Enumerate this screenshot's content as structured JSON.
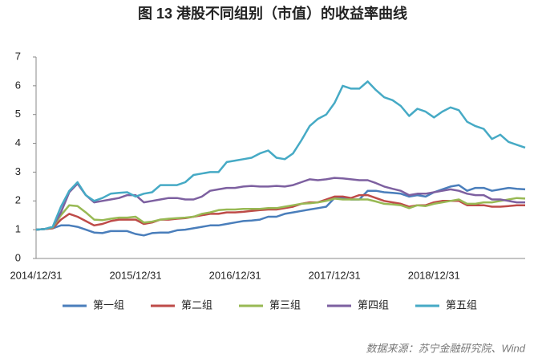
{
  "chart_data": {
    "type": "line",
    "title": "图 13  港股不同组别（市值）的收益率曲线",
    "source": "数据来源：苏宁金融研究院、Wind",
    "categories": [
      "2014/12/31",
      null,
      null,
      null,
      null,
      null,
      null,
      null,
      null,
      null,
      null,
      null,
      "2015/12/31",
      null,
      null,
      null,
      null,
      null,
      null,
      null,
      null,
      null,
      null,
      null,
      "2016/12/31",
      null,
      null,
      null,
      null,
      null,
      null,
      null,
      null,
      null,
      null,
      null,
      "2017/12/31",
      null,
      null,
      null,
      null,
      null,
      null,
      null,
      null,
      null,
      null,
      null,
      "2018/12/31",
      null,
      null,
      null,
      null,
      null,
      null,
      null,
      null,
      null,
      null,
      null
    ],
    "ylim": [
      0,
      7
    ],
    "yticks": [
      0,
      1,
      2,
      3,
      4,
      5,
      6,
      7
    ],
    "grid": false,
    "legend": "bottom",
    "series": [
      {
        "name": "第一组",
        "color": "#4a7ebb",
        "values": [
          1.0,
          1.02,
          1.05,
          1.15,
          1.15,
          1.1,
          1.0,
          0.9,
          0.88,
          0.95,
          0.95,
          0.95,
          0.85,
          0.8,
          0.88,
          0.9,
          0.9,
          0.98,
          1.0,
          1.05,
          1.1,
          1.15,
          1.15,
          1.2,
          1.25,
          1.3,
          1.32,
          1.35,
          1.45,
          1.45,
          1.55,
          1.6,
          1.65,
          1.7,
          1.75,
          1.8,
          2.1,
          2.1,
          2.05,
          2.05,
          2.35,
          2.35,
          2.3,
          2.28,
          2.25,
          2.15,
          2.2,
          2.15,
          2.3,
          2.4,
          2.5,
          2.55,
          2.35,
          2.45,
          2.45,
          2.35,
          2.4,
          2.45,
          2.42,
          2.4
        ]
      },
      {
        "name": "第二组",
        "color": "#be4b48",
        "values": [
          1.0,
          1.02,
          1.05,
          1.35,
          1.55,
          1.45,
          1.3,
          1.15,
          1.2,
          1.3,
          1.35,
          1.35,
          1.35,
          1.2,
          1.25,
          1.35,
          1.35,
          1.38,
          1.4,
          1.45,
          1.5,
          1.55,
          1.55,
          1.6,
          1.6,
          1.62,
          1.65,
          1.68,
          1.7,
          1.7,
          1.75,
          1.8,
          1.9,
          1.95,
          1.95,
          2.05,
          2.15,
          2.15,
          2.1,
          2.2,
          2.2,
          2.1,
          2.0,
          1.95,
          1.9,
          1.8,
          1.85,
          1.85,
          1.95,
          2.0,
          2.0,
          2.0,
          1.85,
          1.85,
          1.85,
          1.8,
          1.8,
          1.82,
          1.85,
          1.85
        ]
      },
      {
        "name": "第三组",
        "color": "#98b954",
        "values": [
          1.0,
          1.02,
          1.08,
          1.5,
          1.85,
          1.82,
          1.6,
          1.35,
          1.33,
          1.38,
          1.42,
          1.42,
          1.45,
          1.25,
          1.28,
          1.35,
          1.38,
          1.4,
          1.42,
          1.45,
          1.55,
          1.6,
          1.68,
          1.7,
          1.7,
          1.72,
          1.72,
          1.72,
          1.75,
          1.75,
          1.8,
          1.85,
          1.9,
          1.92,
          1.95,
          2.0,
          2.08,
          2.05,
          2.05,
          2.05,
          2.05,
          1.98,
          1.9,
          1.88,
          1.85,
          1.75,
          1.85,
          1.82,
          1.9,
          1.95,
          2.0,
          2.05,
          1.9,
          1.9,
          1.95,
          1.95,
          2.0,
          2.05,
          2.1,
          2.08
        ]
      },
      {
        "name": "第四组",
        "color": "#7d60a0",
        "values": [
          1.0,
          1.02,
          1.1,
          1.6,
          2.3,
          2.6,
          2.2,
          1.95,
          2.0,
          2.05,
          2.1,
          2.2,
          2.2,
          1.95,
          2.0,
          2.05,
          2.1,
          2.1,
          2.05,
          2.05,
          2.15,
          2.35,
          2.4,
          2.45,
          2.45,
          2.5,
          2.52,
          2.5,
          2.5,
          2.52,
          2.5,
          2.55,
          2.65,
          2.75,
          2.72,
          2.75,
          2.8,
          2.78,
          2.75,
          2.72,
          2.72,
          2.62,
          2.5,
          2.42,
          2.35,
          2.2,
          2.25,
          2.25,
          2.3,
          2.35,
          2.4,
          2.35,
          2.25,
          2.2,
          2.2,
          2.05,
          2.05,
          2.0,
          1.95,
          1.95
        ]
      },
      {
        "name": "第五组",
        "color": "#46aac5",
        "values": [
          1.0,
          1.02,
          1.1,
          1.8,
          2.35,
          2.65,
          2.2,
          2.0,
          2.1,
          2.25,
          2.28,
          2.3,
          2.15,
          2.25,
          2.3,
          2.55,
          2.55,
          2.55,
          2.65,
          2.9,
          2.95,
          3.0,
          3.0,
          3.35,
          3.4,
          3.45,
          3.5,
          3.65,
          3.75,
          3.5,
          3.45,
          3.65,
          4.1,
          4.6,
          4.85,
          5.0,
          5.4,
          6.0,
          5.9,
          5.9,
          6.15,
          5.85,
          5.6,
          5.5,
          5.3,
          4.95,
          5.2,
          5.1,
          4.9,
          5.1,
          5.25,
          5.15,
          4.75,
          4.6,
          4.5,
          4.15,
          4.3,
          4.05,
          3.95,
          3.85
        ]
      }
    ]
  }
}
